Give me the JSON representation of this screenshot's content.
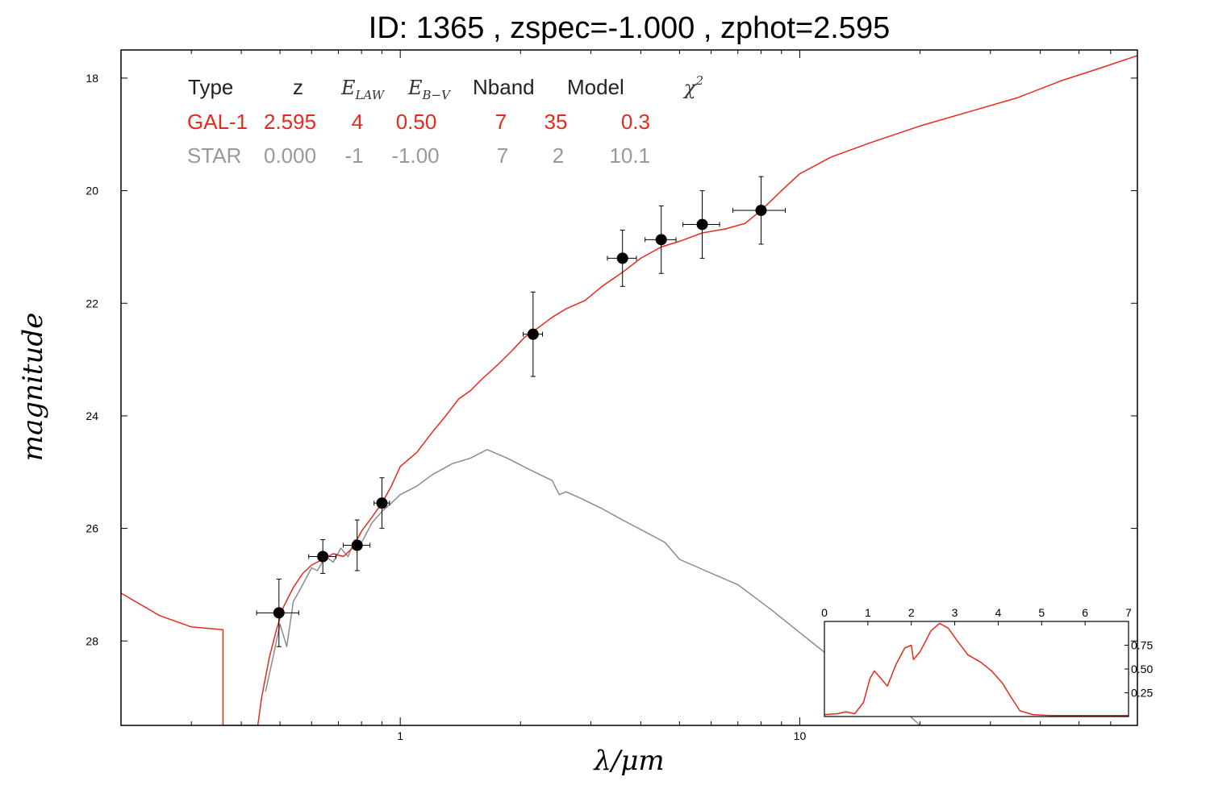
{
  "title": "ID:  1365  , zspec=-1.000 , zphot=2.595",
  "colors": {
    "galaxy": "#e8291c",
    "star": "#8c8c8c",
    "points": "#000000",
    "frame": "#000000"
  },
  "table": {
    "headers": {
      "type": "Type",
      "z": "z",
      "elaw_main": "E",
      "elaw_sub": "LAW",
      "ebv_main": "E",
      "ebv_sub": "B−V",
      "nband": "Nband",
      "model": "Model",
      "chi_main": "χ",
      "chi_sup": "2"
    },
    "rows": [
      {
        "type": "GAL-1",
        "z": "2.595",
        "elaw": "4",
        "ebv": "0.50",
        "nband": "7",
        "model": "35",
        "chi2": "0.3"
      },
      {
        "type": "STAR",
        "z": "0.000",
        "elaw": "-1",
        "ebv": "-1.00",
        "nband": "7",
        "model": "2",
        "chi2": "10.1"
      }
    ]
  },
  "chart_data": [
    {
      "type": "line",
      "xlabel": "λ/μm",
      "ylabel": "magnitude",
      "x_scale": "log",
      "y_inverted": true,
      "xlim": [
        0.2,
        70
      ],
      "ylim": [
        29.5,
        17.5
      ],
      "x_ticks": [
        1,
        10
      ],
      "x_tick_labels": [
        "1",
        "10"
      ],
      "y_ticks": [
        18,
        20,
        22,
        24,
        26,
        28
      ],
      "y_tick_labels": [
        "18",
        "20",
        "22",
        "24",
        "26",
        "28"
      ],
      "observations": [
        {
          "x": 0.497,
          "y": 27.5,
          "xerr": 0.06,
          "yerr": 0.6
        },
        {
          "x": 0.64,
          "y": 26.5,
          "xerr": 0.05,
          "yerr": 0.3
        },
        {
          "x": 0.78,
          "y": 26.3,
          "xerr": 0.06,
          "yerr": 0.45
        },
        {
          "x": 0.9,
          "y": 25.55,
          "xerr": 0.04,
          "yerr": 0.45
        },
        {
          "x": 2.15,
          "y": 22.55,
          "xerr": 0.12,
          "yerr": 0.75
        },
        {
          "x": 3.6,
          "y": 21.2,
          "xerr": 0.3,
          "yerr": 0.5
        },
        {
          "x": 4.5,
          "y": 20.87,
          "xerr": 0.4,
          "yerr": 0.6
        },
        {
          "x": 5.7,
          "y": 20.6,
          "xerr": 0.6,
          "yerr": 0.6
        },
        {
          "x": 8.0,
          "y": 20.35,
          "xerr": 1.2,
          "yerr": 0.6
        }
      ],
      "series": [
        {
          "name": "GAL-1",
          "color": "#e8291c",
          "points": [
            [
              0.2,
              27.15
            ],
            [
              0.25,
              27.55
            ],
            [
              0.3,
              27.75
            ],
            [
              0.36,
              27.8
            ],
            [
              0.36,
              29.5
            ],
            [
              0.44,
              29.5
            ],
            [
              0.45,
              29.0
            ],
            [
              0.47,
              28.3
            ],
            [
              0.49,
              27.8
            ],
            [
              0.51,
              27.4
            ],
            [
              0.54,
              27.05
            ],
            [
              0.57,
              26.8
            ],
            [
              0.6,
              26.65
            ],
            [
              0.64,
              26.55
            ],
            [
              0.68,
              26.45
            ],
            [
              0.72,
              26.5
            ],
            [
              0.76,
              26.35
            ],
            [
              0.8,
              26.05
            ],
            [
              0.85,
              25.8
            ],
            [
              0.9,
              25.55
            ],
            [
              0.95,
              25.25
            ],
            [
              1.0,
              24.9
            ],
            [
              1.1,
              24.65
            ],
            [
              1.2,
              24.3
            ],
            [
              1.3,
              24.0
            ],
            [
              1.4,
              23.7
            ],
            [
              1.5,
              23.55
            ],
            [
              1.6,
              23.35
            ],
            [
              1.75,
              23.1
            ],
            [
              1.9,
              22.85
            ],
            [
              2.05,
              22.6
            ],
            [
              2.2,
              22.45
            ],
            [
              2.4,
              22.25
            ],
            [
              2.6,
              22.1
            ],
            [
              2.9,
              21.95
            ],
            [
              3.2,
              21.7
            ],
            [
              3.6,
              21.45
            ],
            [
              4.0,
              21.2
            ],
            [
              4.5,
              21.0
            ],
            [
              5.0,
              20.9
            ],
            [
              5.7,
              20.75
            ],
            [
              6.5,
              20.68
            ],
            [
              7.3,
              20.58
            ],
            [
              8.0,
              20.35
            ],
            [
              9.0,
              20.0
            ],
            [
              10.0,
              19.7
            ],
            [
              12.0,
              19.4
            ],
            [
              15.0,
              19.15
            ],
            [
              20.0,
              18.85
            ],
            [
              28.0,
              18.55
            ],
            [
              35.0,
              18.35
            ],
            [
              45.0,
              18.05
            ],
            [
              55.0,
              17.85
            ],
            [
              70.0,
              17.6
            ]
          ]
        },
        {
          "name": "STAR",
          "color": "#8c8c8c",
          "points": [
            [
              0.46,
              28.9
            ],
            [
              0.48,
              28.3
            ],
            [
              0.5,
              27.7
            ],
            [
              0.52,
              28.1
            ],
            [
              0.54,
              27.3
            ],
            [
              0.56,
              27.1
            ],
            [
              0.58,
              26.9
            ],
            [
              0.6,
              26.7
            ],
            [
              0.62,
              26.75
            ],
            [
              0.65,
              26.5
            ],
            [
              0.68,
              26.6
            ],
            [
              0.71,
              26.35
            ],
            [
              0.74,
              26.5
            ],
            [
              0.77,
              26.2
            ],
            [
              0.8,
              26.25
            ],
            [
              0.85,
              25.9
            ],
            [
              0.9,
              25.7
            ],
            [
              0.95,
              25.55
            ],
            [
              1.0,
              25.4
            ],
            [
              1.1,
              25.25
            ],
            [
              1.2,
              25.05
            ],
            [
              1.35,
              24.85
            ],
            [
              1.5,
              24.75
            ],
            [
              1.65,
              24.6
            ],
            [
              1.85,
              24.75
            ],
            [
              2.1,
              24.95
            ],
            [
              2.4,
              25.15
            ],
            [
              2.5,
              25.4
            ],
            [
              2.6,
              25.35
            ],
            [
              2.8,
              25.45
            ],
            [
              3.2,
              25.65
            ],
            [
              3.6,
              25.85
            ],
            [
              4.2,
              26.1
            ],
            [
              4.6,
              26.25
            ],
            [
              5.0,
              26.55
            ],
            [
              5.8,
              26.75
            ],
            [
              7.0,
              27.0
            ],
            [
              8.5,
              27.45
            ],
            [
              10.0,
              27.85
            ],
            [
              12.0,
              28.3
            ],
            [
              15.0,
              28.8
            ],
            [
              18.0,
              29.2
            ],
            [
              20.0,
              29.5
            ]
          ]
        }
      ]
    },
    {
      "type": "line",
      "xlim": [
        0,
        7
      ],
      "ylim": [
        0,
        1.0
      ],
      "x_ticks": [
        0,
        1,
        2,
        3,
        4,
        5,
        6,
        7
      ],
      "x_tick_labels": [
        "0",
        "1",
        "2",
        "3",
        "4",
        "5",
        "6",
        "7"
      ],
      "y_ticks": [
        0.25,
        0.5,
        0.75
      ],
      "y_tick_labels": [
        "0.25",
        "0.50",
        "0.75"
      ],
      "series": [
        {
          "color": "#e8291c",
          "points": [
            [
              0,
              0.02
            ],
            [
              0.3,
              0.03
            ],
            [
              0.5,
              0.05
            ],
            [
              0.7,
              0.03
            ],
            [
              0.9,
              0.15
            ],
            [
              1.05,
              0.4
            ],
            [
              1.15,
              0.48
            ],
            [
              1.3,
              0.4
            ],
            [
              1.45,
              0.32
            ],
            [
              1.65,
              0.55
            ],
            [
              1.85,
              0.72
            ],
            [
              2.0,
              0.75
            ],
            [
              2.05,
              0.6
            ],
            [
              2.2,
              0.68
            ],
            [
              2.45,
              0.9
            ],
            [
              2.65,
              0.98
            ],
            [
              2.85,
              0.93
            ],
            [
              3.05,
              0.8
            ],
            [
              3.3,
              0.65
            ],
            [
              3.6,
              0.57
            ],
            [
              3.85,
              0.48
            ],
            [
              4.1,
              0.35
            ],
            [
              4.3,
              0.2
            ],
            [
              4.5,
              0.06
            ],
            [
              4.8,
              0.02
            ],
            [
              5.2,
              0.01
            ],
            [
              7.0,
              0.01
            ]
          ]
        }
      ]
    }
  ]
}
